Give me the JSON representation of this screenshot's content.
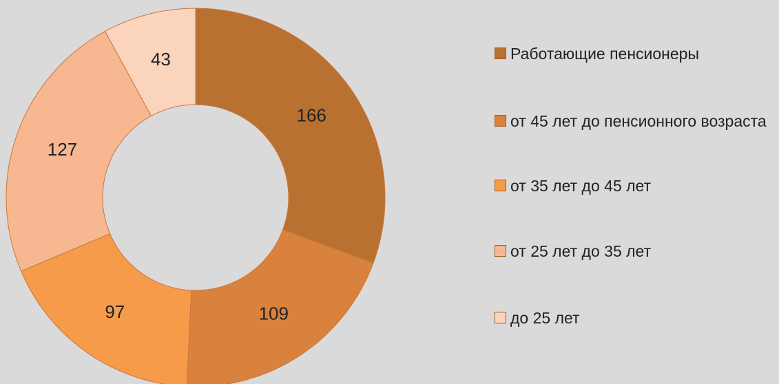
{
  "chart_data": {
    "type": "donut",
    "categories": [
      "Работающие пенсионеры",
      "от 45 лет до пенсионного возраста",
      "от 35 лет до 45 лет",
      "от 25 лет до 35 лет",
      "до 25 лет"
    ],
    "values": [
      166,
      109,
      97,
      127,
      43
    ],
    "colors": [
      "#b97132",
      "#d9823e",
      "#f59b4a",
      "#f7b791",
      "#fbd4bd"
    ],
    "legend": "right"
  }
}
